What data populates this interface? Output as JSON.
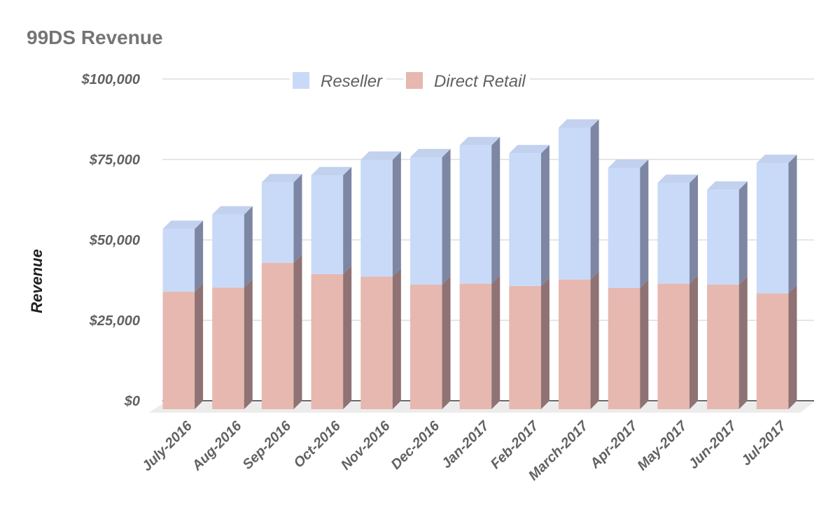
{
  "chart_data": {
    "type": "bar",
    "stacked": true,
    "three_d": true,
    "title": "99DS Revenue",
    "ylabel": "Revenue",
    "xlabel": "",
    "ylim": [
      0,
      100000
    ],
    "yticks": [
      "$0",
      "$25,000",
      "$50,000",
      "$75,000",
      "$100,000"
    ],
    "ytick_values": [
      0,
      25000,
      50000,
      75000,
      100000
    ],
    "grid": true,
    "legend_position": "top",
    "categories": [
      "July-2016",
      "Aug-2016",
      "Sep-2016",
      "Oct-2016",
      "Nov-2016",
      "Dec-2016",
      "Jan-2017",
      "Feb-2017",
      "March-2017",
      "Apr-2017",
      "May-2017",
      "Jun-2017",
      "Jul-2017"
    ],
    "series": [
      {
        "name": "Direct Retail",
        "color": "#e6b8af",
        "values": [
          36500,
          37800,
          45500,
          42000,
          41200,
          38700,
          39000,
          38300,
          40300,
          37700,
          39000,
          38700,
          36000
        ]
      },
      {
        "name": "Reseller",
        "color": "#c9daf8",
        "values": [
          19500,
          22700,
          25000,
          30700,
          36300,
          39600,
          43000,
          41200,
          47200,
          37300,
          31300,
          29500,
          40500
        ]
      }
    ],
    "legend_order": [
      "Reseller",
      "Direct Retail"
    ]
  }
}
